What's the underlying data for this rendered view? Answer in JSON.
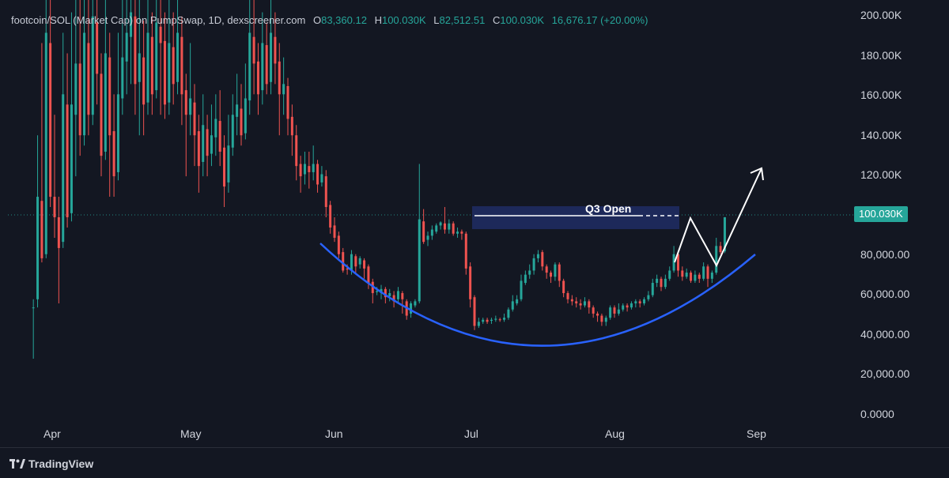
{
  "legend": {
    "title": "footcoin/SOL (Market Cap) on PumpSwap, 1D, dexscreener.com",
    "o_label": "O",
    "o_value": "83,360.12",
    "h_label": "H",
    "h_value": "100.030K",
    "l_label": "L",
    "l_value": "82,512.51",
    "c_label": "C",
    "c_value": "100.030K",
    "change": "16,676.17 (+20.00%)"
  },
  "price_tag": "100.030K",
  "annotation_q3": "Q3 Open",
  "footer_brand": "TradingView",
  "colors": {
    "up": "#26a69a",
    "down": "#ef5350",
    "background": "#131722",
    "curve": "#2962ff",
    "zone": "#1e2a5e"
  },
  "chart_data": {
    "type": "candlestick",
    "title": "footcoin/SOL (Market Cap) on PumpSwap, 1D, dexscreener.com",
    "y_axis": {
      "ticks": [
        0,
        20000,
        40000,
        60000,
        80000,
        100000,
        120000,
        140000,
        160000,
        180000,
        200000
      ],
      "tick_labels": [
        "0.0000",
        "20,000.00",
        "40,000.00",
        "60,000.00",
        "80,000.00",
        "100.00K",
        "120.00K",
        "140.00K",
        "160.00K",
        "180.00K",
        "200.00K"
      ],
      "range": [
        -6000,
        206000
      ]
    },
    "x_axis": {
      "tick_labels": [
        "Apr",
        "May",
        "Jun",
        "Jul",
        "Aug",
        "Sep"
      ],
      "tick_days": [
        1,
        31,
        62,
        92,
        123,
        154
      ],
      "range_days": [
        -10,
        188
      ]
    },
    "candles": [
      [
        -4,
        56000,
        56000,
        31000,
        60000
      ],
      [
        -3,
        60000,
        110000,
        56000,
        140000
      ],
      [
        -2,
        108000,
        80000,
        78000,
        185000
      ],
      [
        -1,
        82000,
        190000,
        80000,
        206000
      ],
      [
        0,
        185000,
        110000,
        105000,
        206000
      ],
      [
        1,
        110000,
        100000,
        90000,
        150000
      ],
      [
        2,
        100000,
        85000,
        58000,
        110000
      ],
      [
        3,
        88000,
        160000,
        85000,
        190000
      ],
      [
        4,
        155000,
        100000,
        95000,
        180000
      ],
      [
        5,
        102000,
        155000,
        98000,
        200000
      ],
      [
        6,
        150000,
        175000,
        120000,
        206000
      ],
      [
        7,
        175000,
        140000,
        130000,
        206000
      ],
      [
        8,
        140000,
        190000,
        135000,
        206000
      ],
      [
        9,
        185000,
        150000,
        140000,
        206000
      ],
      [
        10,
        150000,
        198000,
        145000,
        206000
      ],
      [
        11,
        195000,
        170000,
        155000,
        206000
      ],
      [
        12,
        170000,
        130000,
        120000,
        180000
      ],
      [
        13,
        132000,
        180000,
        128000,
        206000
      ],
      [
        14,
        178000,
        140000,
        110000,
        190000
      ],
      [
        15,
        142000,
        120000,
        110000,
        160000
      ],
      [
        16,
        122000,
        160000,
        118000,
        190000
      ],
      [
        17,
        158000,
        178000,
        150000,
        206000
      ],
      [
        18,
        176000,
        190000,
        160000,
        206000
      ],
      [
        19,
        188000,
        200000,
        165000,
        206000
      ],
      [
        20,
        198000,
        165000,
        150000,
        206000
      ],
      [
        21,
        166000,
        180000,
        140000,
        206000
      ],
      [
        22,
        178000,
        155000,
        140000,
        196000
      ],
      [
        23,
        156000,
        190000,
        150000,
        206000
      ],
      [
        24,
        188000,
        160000,
        150000,
        200000
      ],
      [
        25,
        162000,
        195000,
        158000,
        206000
      ],
      [
        26,
        193000,
        185000,
        150000,
        206000
      ],
      [
        27,
        186000,
        155000,
        148000,
        200000
      ],
      [
        28,
        156000,
        185000,
        150000,
        206000
      ],
      [
        29,
        183000,
        165000,
        155000,
        200000
      ],
      [
        30,
        166000,
        190000,
        160000,
        206000
      ],
      [
        31,
        188000,
        160000,
        145000,
        198000
      ],
      [
        32,
        162000,
        150000,
        120000,
        170000
      ],
      [
        33,
        150000,
        158000,
        140000,
        185000
      ],
      [
        34,
        156000,
        140000,
        125000,
        165000
      ],
      [
        35,
        142000,
        125000,
        112000,
        150000
      ],
      [
        36,
        127000,
        145000,
        120000,
        160000
      ],
      [
        37,
        143000,
        130000,
        120000,
        150000
      ],
      [
        38,
        131000,
        140000,
        125000,
        155000
      ],
      [
        39,
        139000,
        148000,
        130000,
        160000
      ],
      [
        40,
        147000,
        132000,
        125000,
        162000
      ],
      [
        41,
        134000,
        115000,
        105000,
        140000
      ],
      [
        42,
        117000,
        135000,
        112000,
        150000
      ],
      [
        43,
        134000,
        150000,
        130000,
        160000
      ],
      [
        44,
        149000,
        155000,
        140000,
        170000
      ],
      [
        45,
        153000,
        140000,
        135000,
        165000
      ],
      [
        46,
        141000,
        158000,
        138000,
        175000
      ],
      [
        47,
        157000,
        190000,
        150000,
        206000
      ],
      [
        48,
        188000,
        175000,
        160000,
        206000
      ],
      [
        49,
        176000,
        160000,
        150000,
        185000
      ],
      [
        50,
        162000,
        185000,
        155000,
        200000
      ],
      [
        51,
        184000,
        165000,
        160000,
        195000
      ],
      [
        52,
        166000,
        190000,
        160000,
        206000
      ],
      [
        53,
        188000,
        175000,
        165000,
        200000
      ],
      [
        54,
        176000,
        160000,
        140000,
        185000
      ],
      [
        55,
        160000,
        165000,
        150000,
        178000
      ],
      [
        56,
        164000,
        148000,
        140000,
        168000
      ],
      [
        57,
        149000,
        140000,
        130000,
        155000
      ],
      [
        58,
        140000,
        125000,
        118000,
        145000
      ],
      [
        59,
        126000,
        120000,
        112000,
        130000
      ],
      [
        60,
        121000,
        126000,
        116000,
        132000
      ],
      [
        61,
        125000,
        122000,
        114000,
        132000
      ],
      [
        62,
        122000,
        126000,
        118000,
        135000
      ],
      [
        63,
        126000,
        116000,
        112000,
        128000
      ],
      [
        64,
        117000,
        121000,
        115000,
        125000
      ],
      [
        65,
        120000,
        105000,
        100000,
        123000
      ],
      [
        66,
        106000,
        95000,
        92000,
        108000
      ],
      [
        67,
        96000,
        90000,
        88000,
        100000
      ],
      [
        68,
        91000,
        82000,
        80000,
        93000
      ],
      [
        69,
        83000,
        74000,
        73000,
        85000
      ],
      [
        70,
        75000,
        74500,
        72000,
        77000
      ],
      [
        71,
        74000,
        82000,
        72000,
        84000
      ],
      [
        72,
        81000,
        76000,
        73000,
        82000
      ],
      [
        73,
        77000,
        80000,
        75000,
        81000
      ],
      [
        74,
        79000,
        75000,
        70000,
        80000
      ],
      [
        75,
        76000,
        68000,
        65000,
        77000
      ],
      [
        76,
        68500,
        63000,
        58000,
        70000
      ],
      [
        77,
        63500,
        64000,
        62000,
        66000
      ],
      [
        78,
        63000,
        65000,
        60000,
        67000
      ],
      [
        79,
        65000,
        61000,
        58000,
        66000
      ],
      [
        80,
        61500,
        63000,
        59000,
        65000
      ],
      [
        81,
        62000,
        59000,
        56000,
        64000
      ],
      [
        82,
        60000,
        64000,
        58000,
        66000
      ],
      [
        83,
        63000,
        60000,
        53000,
        64000
      ],
      [
        84,
        59000,
        52000,
        50000,
        60000
      ],
      [
        85,
        53000,
        58000,
        51000,
        59000
      ],
      [
        86,
        57000,
        59000,
        56000,
        60000
      ],
      [
        87,
        59000,
        99000,
        58000,
        126000
      ],
      [
        88,
        98000,
        88000,
        87000,
        104000
      ],
      [
        89,
        89000,
        91000,
        86000,
        93000
      ],
      [
        90,
        91000,
        94000,
        89000,
        96000
      ],
      [
        91,
        93000,
        96000,
        92000,
        97000
      ],
      [
        92,
        96000,
        97500,
        94000,
        98000
      ],
      [
        93,
        97000,
        94000,
        92000,
        105000
      ],
      [
        94,
        94000,
        97000,
        92000,
        99000
      ],
      [
        95,
        97000,
        92000,
        91000,
        98000
      ],
      [
        96,
        92000,
        93000,
        90000,
        95000
      ],
      [
        97,
        93000,
        92000,
        89000,
        94000
      ],
      [
        98,
        92000,
        75000,
        72000,
        93000
      ],
      [
        99,
        76000,
        60000,
        56000,
        78000
      ],
      [
        100,
        61000,
        47000,
        45000,
        62000
      ],
      [
        101,
        47000,
        49000,
        46000,
        51000
      ],
      [
        102,
        49000,
        50000,
        48000,
        51000
      ],
      [
        103,
        50000,
        49000,
        48000,
        51000
      ],
      [
        104,
        49500,
        50000,
        48000,
        51000
      ],
      [
        105,
        50000,
        50500,
        49000,
        52000
      ],
      [
        106,
        50200,
        50000,
        49000,
        51000
      ],
      [
        107,
        50000,
        51000,
        49000,
        53000
      ],
      [
        108,
        51000,
        55000,
        50000,
        56000
      ],
      [
        109,
        55000,
        59000,
        54000,
        62000
      ],
      [
        110,
        58000,
        60000,
        57000,
        62000
      ],
      [
        111,
        60000,
        69000,
        59000,
        72000
      ],
      [
        112,
        68000,
        72000,
        67000,
        74000
      ],
      [
        113,
        72000,
        74000,
        70000,
        77000
      ],
      [
        114,
        74000,
        80000,
        72000,
        82000
      ],
      [
        115,
        80000,
        82000,
        78000,
        84000
      ],
      [
        116,
        83000,
        76000,
        74000,
        84000
      ],
      [
        117,
        76000,
        73000,
        70000,
        77000
      ],
      [
        118,
        73000,
        71000,
        68000,
        74000
      ],
      [
        119,
        71000,
        77000,
        69000,
        78000
      ],
      [
        120,
        77000,
        69000,
        66000,
        78000
      ],
      [
        121,
        69000,
        63000,
        61000,
        70000
      ],
      [
        122,
        63000,
        60000,
        58000,
        64000
      ],
      [
        123,
        60000,
        59000,
        57000,
        62000
      ],
      [
        124,
        59000,
        58000,
        56000,
        61000
      ],
      [
        125,
        58000,
        57000,
        55000,
        60000
      ],
      [
        126,
        57000,
        59000,
        56000,
        61000
      ],
      [
        127,
        59000,
        56000,
        53000,
        60000
      ],
      [
        128,
        56000,
        53000,
        51000,
        57000
      ],
      [
        129,
        53000,
        52000,
        49000,
        54000
      ],
      [
        130,
        52000,
        49000,
        47000,
        53000
      ],
      [
        131,
        49000,
        51000,
        47000,
        52000
      ],
      [
        132,
        51000,
        56000,
        50000,
        57000
      ],
      [
        133,
        56000,
        53000,
        51000,
        57000
      ],
      [
        134,
        53000,
        55000,
        52000,
        58000
      ],
      [
        135,
        55000,
        57000,
        54000,
        58000
      ],
      [
        136,
        57000,
        56000,
        54000,
        58000
      ],
      [
        137,
        56000,
        58000,
        55000,
        59000
      ],
      [
        138,
        58000,
        59000,
        56000,
        60000
      ],
      [
        139,
        59000,
        58000,
        56000,
        60000
      ],
      [
        140,
        58000,
        60000,
        57000,
        61000
      ],
      [
        141,
        60000,
        62000,
        59000,
        64000
      ],
      [
        142,
        62000,
        68000,
        61000,
        70000
      ],
      [
        143,
        68000,
        70000,
        66000,
        72000
      ],
      [
        144,
        70000,
        66000,
        64000,
        71000
      ],
      [
        145,
        66000,
        70000,
        65000,
        72000
      ],
      [
        146,
        70000,
        74000,
        69000,
        76000
      ],
      [
        147,
        74000,
        82000,
        73000,
        86000
      ],
      [
        148,
        82000,
        74000,
        71000,
        83000
      ],
      [
        149,
        74000,
        71000,
        69000,
        76000
      ],
      [
        150,
        71000,
        73000,
        70000,
        75000
      ],
      [
        151,
        73000,
        69000,
        68000,
        74000
      ],
      [
        152,
        69000,
        72000,
        68000,
        74000
      ],
      [
        153,
        72000,
        70000,
        68000,
        73000
      ],
      [
        154,
        70000,
        76000,
        69000,
        78000
      ],
      [
        155,
        76000,
        70000,
        66000,
        77000
      ],
      [
        156,
        70000,
        73000,
        68000,
        74000
      ],
      [
        157,
        73000,
        86000,
        72000,
        90000
      ],
      [
        158,
        86000,
        83000,
        82000,
        88000
      ],
      [
        159,
        83360.12,
        100030,
        82512.51,
        100030
      ]
    ]
  }
}
